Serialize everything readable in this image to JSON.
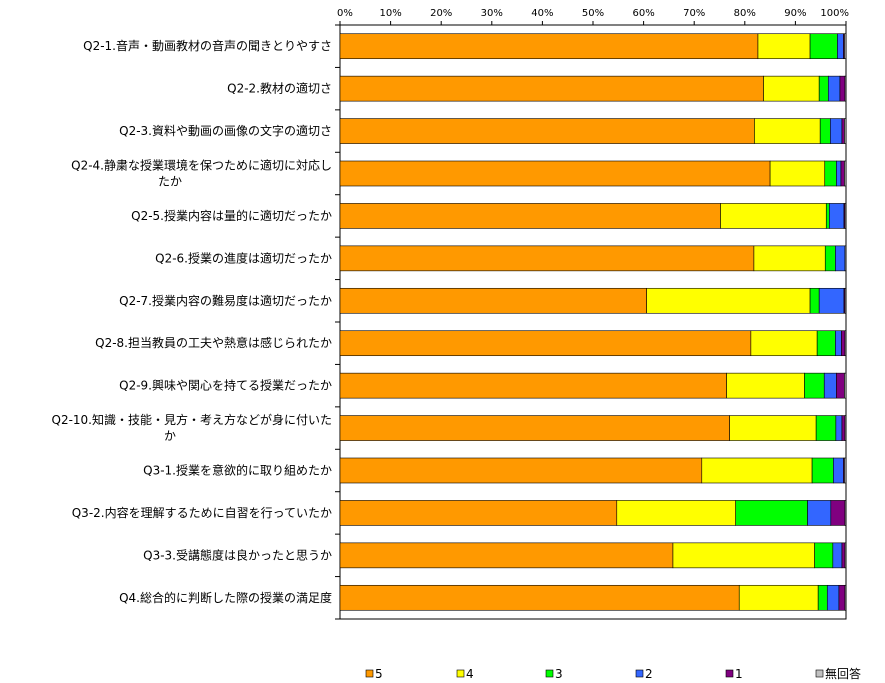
{
  "chart_data": {
    "type": "bar",
    "orientation": "horizontal-stacked-percent",
    "xlim": [
      0,
      100
    ],
    "x_ticks": [
      "0%",
      "10%",
      "20%",
      "30%",
      "40%",
      "50%",
      "60%",
      "70%",
      "80%",
      "90%",
      "100%"
    ],
    "legend_position": "bottom",
    "categories": [
      [
        "Q2-1.音声・動画教材の音声の聞きとりやすさ"
      ],
      [
        "Q2-2.教材の適切さ"
      ],
      [
        "Q2-3.資料や動画の画像の文字の適切さ"
      ],
      [
        "Q2-4.静粛な授業環境を保つために適切に対応し",
        "たか"
      ],
      [
        "Q2-5.授業内容は量的に適切だったか"
      ],
      [
        "Q2-6.授業の進度は適切だったか"
      ],
      [
        "Q2-7.授業内容の難易度は適切だったか"
      ],
      [
        "Q2-8.担当教員の工夫や熱意は感じられたか"
      ],
      [
        "Q2-9.興味や関心を持てる授業だったか"
      ],
      [
        "Q2-10.知識・技能・見方・考え方などが身に付いた",
        "か"
      ],
      [
        "Q3-1.授業を意欲的に取り組めたか"
      ],
      [
        "Q3-2.内容を理解するために自習を行っていたか"
      ],
      [
        "Q3-3.受講態度は良かったと思うか"
      ],
      [
        "Q4.総合的に判断した際の授業の満足度"
      ]
    ],
    "series": [
      {
        "name": "5",
        "color": "#ff9900",
        "values": [
          82.6,
          83.7,
          81.9,
          85.0,
          75.2,
          81.8,
          60.6,
          81.2,
          76.4,
          77.0,
          71.5,
          54.7,
          65.8,
          78.9
        ]
      },
      {
        "name": "4",
        "color": "#ffff00",
        "values": [
          10.3,
          11.0,
          13.0,
          10.8,
          20.9,
          14.1,
          32.3,
          13.1,
          15.4,
          17.1,
          21.8,
          23.5,
          28.0,
          15.6
        ]
      },
      {
        "name": "3",
        "color": "#00ff00",
        "values": [
          5.4,
          1.8,
          2.0,
          2.3,
          0.6,
          2.0,
          1.8,
          3.6,
          3.9,
          3.9,
          4.2,
          14.2,
          3.6,
          1.8
        ]
      },
      {
        "name": "2",
        "color": "#3366ff",
        "values": [
          1.2,
          2.3,
          2.3,
          0.9,
          2.9,
          1.9,
          4.9,
          1.2,
          2.4,
          1.2,
          2.0,
          4.6,
          1.8,
          2.3
        ]
      },
      {
        "name": "1",
        "color": "#800080",
        "values": [
          0.2,
          1.0,
          0.5,
          0.7,
          0.2,
          0.0,
          0.2,
          0.7,
          1.6,
          0.6,
          0.2,
          2.8,
          0.6,
          1.2
        ]
      },
      {
        "name": "無回答",
        "color": "#c0c0c0",
        "values": [
          0.3,
          0.2,
          0.3,
          0.3,
          0.2,
          0.2,
          0.2,
          0.2,
          0.3,
          0.2,
          0.3,
          0.2,
          0.2,
          0.2
        ]
      }
    ],
    "grid": false
  }
}
